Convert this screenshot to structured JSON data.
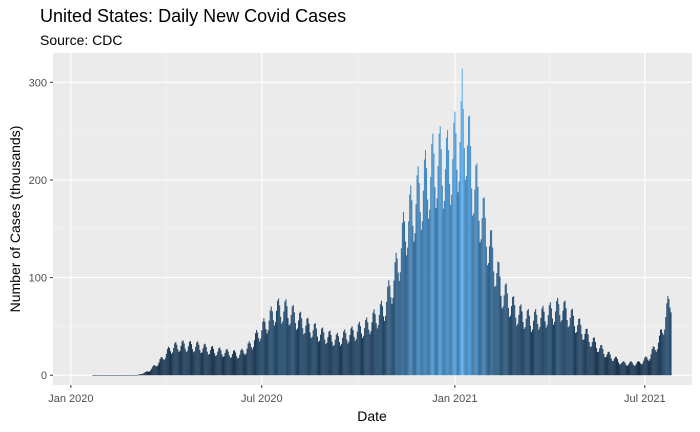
{
  "chart_data": {
    "type": "bar",
    "title": "United States: Daily New Covid Cases",
    "subtitle": "Source: CDC",
    "xlabel": "Date",
    "ylabel": "Number of Cases (thousands)",
    "ylim": [
      -10,
      330
    ],
    "y_ticks": [
      0,
      100,
      200,
      300
    ],
    "xlim": [
      "2019-12-15",
      "2021-08-15"
    ],
    "x_ticks": [
      {
        "date": "2020-01-01",
        "label": "Jan 2020"
      },
      {
        "date": "2020-07-01",
        "label": "Jul 2020"
      },
      {
        "date": "2021-01-01",
        "label": "Jan 2021"
      },
      {
        "date": "2021-07-01",
        "label": "Jul 2021"
      }
    ],
    "grid": true,
    "legend": "none",
    "fill_scale": {
      "low": "#132b43",
      "high": "#56b1f7",
      "basis": "value"
    },
    "start_date": "2020-01-22",
    "end_date": "2021-07-26",
    "trend_points": [
      [
        "2020-01-22",
        0
      ],
      [
        "2020-03-05",
        0.3
      ],
      [
        "2020-03-15",
        4
      ],
      [
        "2020-03-25",
        13
      ],
      [
        "2020-04-05",
        27
      ],
      [
        "2020-04-15",
        30
      ],
      [
        "2020-05-01",
        29
      ],
      [
        "2020-05-15",
        25
      ],
      [
        "2020-06-01",
        22
      ],
      [
        "2020-06-10",
        21
      ],
      [
        "2020-06-20",
        30
      ],
      [
        "2020-07-01",
        46
      ],
      [
        "2020-07-15",
        66
      ],
      [
        "2020-07-25",
        65
      ],
      [
        "2020-08-10",
        52
      ],
      [
        "2020-08-25",
        42
      ],
      [
        "2020-09-10",
        36
      ],
      [
        "2020-09-25",
        42
      ],
      [
        "2020-10-10",
        50
      ],
      [
        "2020-10-25",
        66
      ],
      [
        "2020-11-05",
        100
      ],
      [
        "2020-11-15",
        150
      ],
      [
        "2020-11-25",
        175
      ],
      [
        "2020-12-05",
        195
      ],
      [
        "2020-12-15",
        215
      ],
      [
        "2020-12-25",
        210
      ],
      [
        "2021-01-05",
        235
      ],
      [
        "2021-01-10",
        255
      ],
      [
        "2021-01-20",
        190
      ],
      [
        "2021-02-01",
        140
      ],
      [
        "2021-02-15",
        85
      ],
      [
        "2021-03-01",
        63
      ],
      [
        "2021-03-15",
        55
      ],
      [
        "2021-04-01",
        62
      ],
      [
        "2021-04-12",
        68
      ],
      [
        "2021-04-25",
        55
      ],
      [
        "2021-05-10",
        36
      ],
      [
        "2021-05-25",
        22
      ],
      [
        "2021-06-10",
        12
      ],
      [
        "2021-06-25",
        12
      ],
      [
        "2021-07-05",
        18
      ],
      [
        "2021-07-15",
        35
      ],
      [
        "2021-07-26",
        80
      ]
    ],
    "weekly_amplitude": 0.2,
    "peak_value": 314,
    "peak_date": "2021-01-08"
  }
}
